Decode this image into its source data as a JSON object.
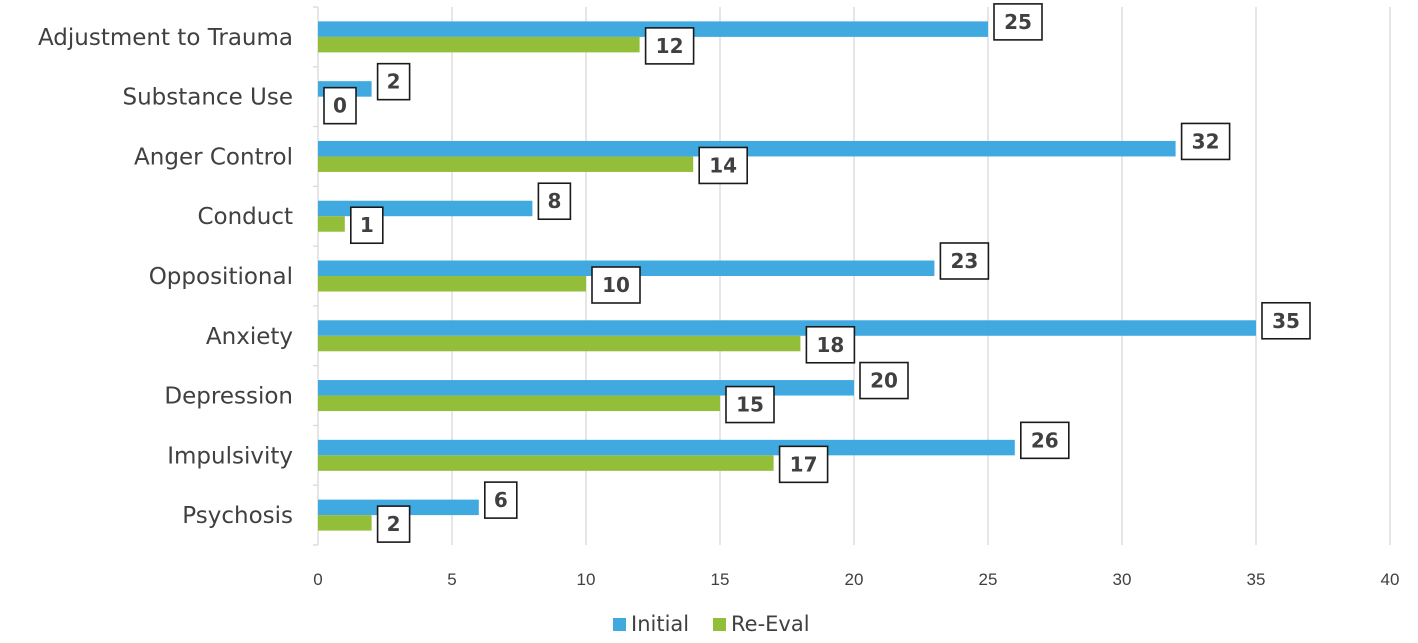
{
  "chart_data": {
    "type": "bar",
    "orientation": "horizontal",
    "categories": [
      "Adjustment to Trauma",
      "Substance Use",
      "Anger Control",
      "Conduct",
      "Oppositional",
      "Anxiety",
      "Depression",
      "Impulsivity",
      "Psychosis"
    ],
    "series": [
      {
        "name": "Initial",
        "color": "#3FA9E0",
        "values": [
          25,
          2,
          32,
          8,
          23,
          35,
          20,
          26,
          6
        ]
      },
      {
        "name": "Re-Eval",
        "color": "#93BE3A",
        "values": [
          12,
          0,
          14,
          1,
          10,
          18,
          15,
          17,
          2
        ]
      }
    ],
    "title": "",
    "xlabel": "",
    "ylabel": "",
    "xlim": [
      0,
      40
    ],
    "xticks": [
      0,
      5,
      10,
      15,
      20,
      25,
      30,
      35,
      40
    ],
    "grid": true,
    "legend_position": "bottom"
  }
}
